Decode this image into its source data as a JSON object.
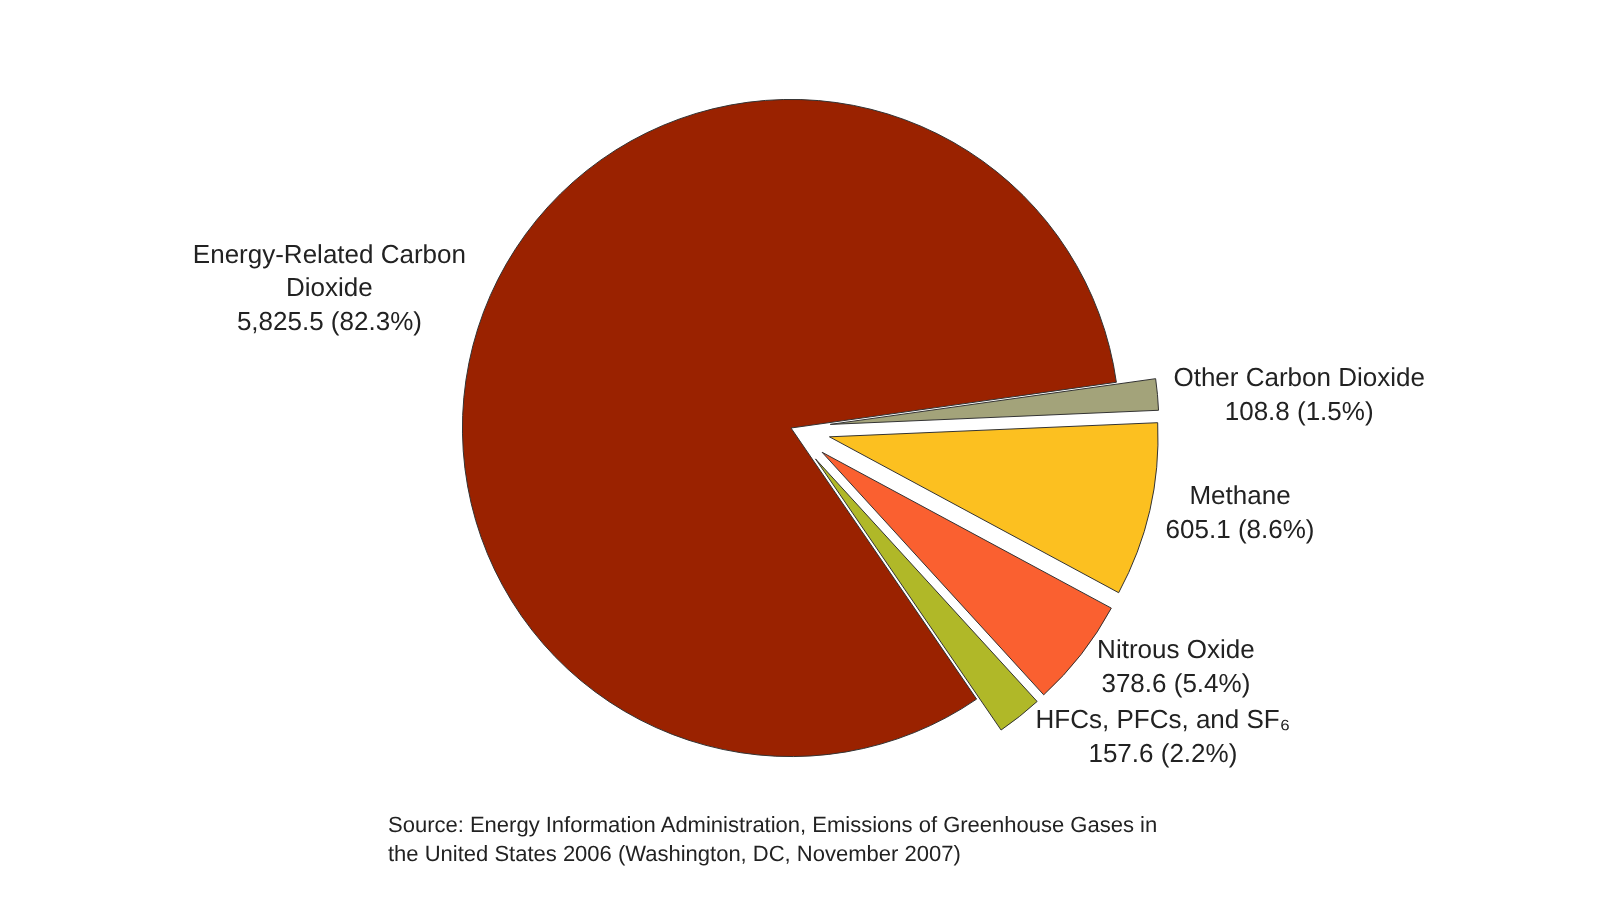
{
  "chart_data": {
    "type": "pie",
    "categories": [
      "Other Carbon Dioxide",
      "Methane",
      "Nitrous Oxide",
      "HFCs, PFCs, and SF₆",
      "Energy-Related Carbon Dioxide"
    ],
    "values": [
      108.8,
      605.1,
      378.6,
      157.6,
      5825.5
    ],
    "value_labels": [
      "108.8 (1.5%)",
      "605.1 (8.6%)",
      "378.6 (5.4%)",
      "157.6 (2.2%)",
      "5,825.5 (82.3%)"
    ],
    "colors": [
      "#a3a37a",
      "#fcc020",
      "#fa6030",
      "#b0b828",
      "#9a2200"
    ],
    "legend": false,
    "annotations": [
      "Source: Energy Information Administration, Emissions of Greenhouse Gases in the United States 2006 (Washington, DC, November 2007)"
    ]
  }
}
